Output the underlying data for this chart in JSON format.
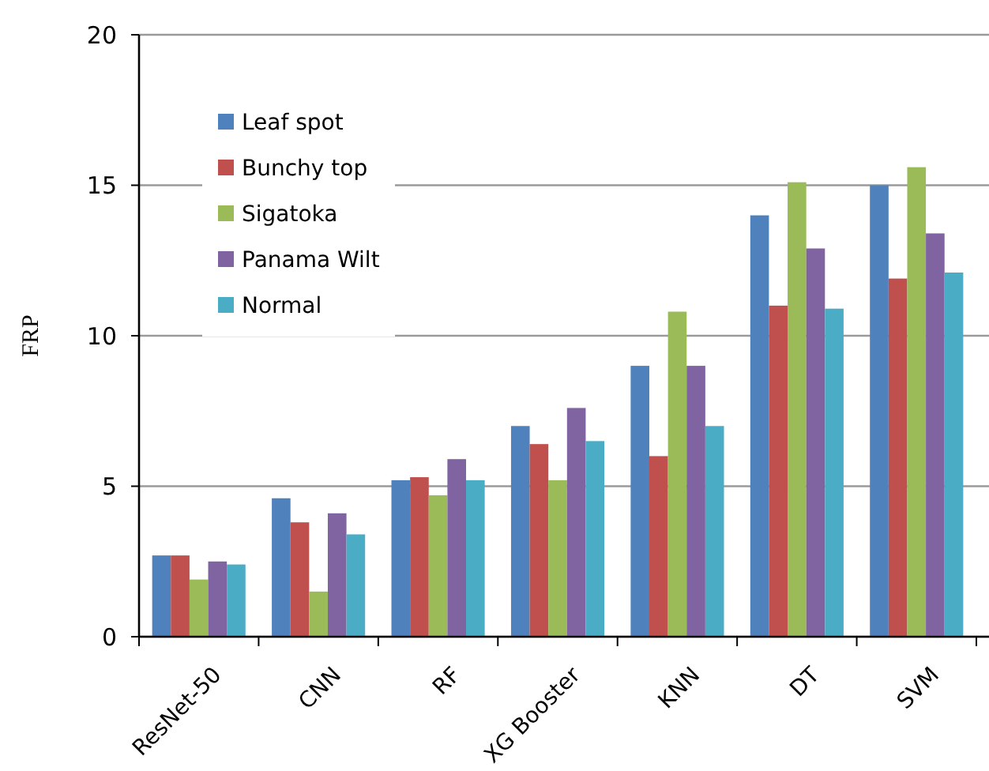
{
  "chart_data": {
    "type": "bar",
    "ylabel": "FRP",
    "categories": [
      "ResNet-50",
      "CNN",
      "RF",
      "XG Booster",
      "KNN",
      "DT",
      "SVM"
    ],
    "series": [
      {
        "name": "Leaf spot",
        "color": "#4f81bd",
        "values": [
          2.7,
          4.6,
          5.2,
          7.0,
          9.0,
          14.0,
          15.0
        ]
      },
      {
        "name": "Bunchy top",
        "color": "#c0504d",
        "values": [
          2.7,
          3.8,
          5.3,
          6.4,
          6.0,
          11.0,
          11.9
        ]
      },
      {
        "name": "Sigatoka",
        "color": "#9bbb59",
        "values": [
          1.9,
          1.5,
          4.7,
          5.2,
          10.8,
          15.1,
          15.6
        ]
      },
      {
        "name": "Panama Wilt",
        "color": "#8064a2",
        "values": [
          2.5,
          4.1,
          5.9,
          7.6,
          9.0,
          12.9,
          13.4
        ]
      },
      {
        "name": "Normal",
        "color": "#4bacc6",
        "values": [
          2.4,
          3.4,
          5.2,
          6.5,
          7.0,
          10.9,
          12.1
        ]
      }
    ],
    "ylim": [
      0,
      20
    ],
    "yticks": [
      0,
      5,
      10,
      15,
      20
    ],
    "grid": "y",
    "legend": "top left"
  }
}
